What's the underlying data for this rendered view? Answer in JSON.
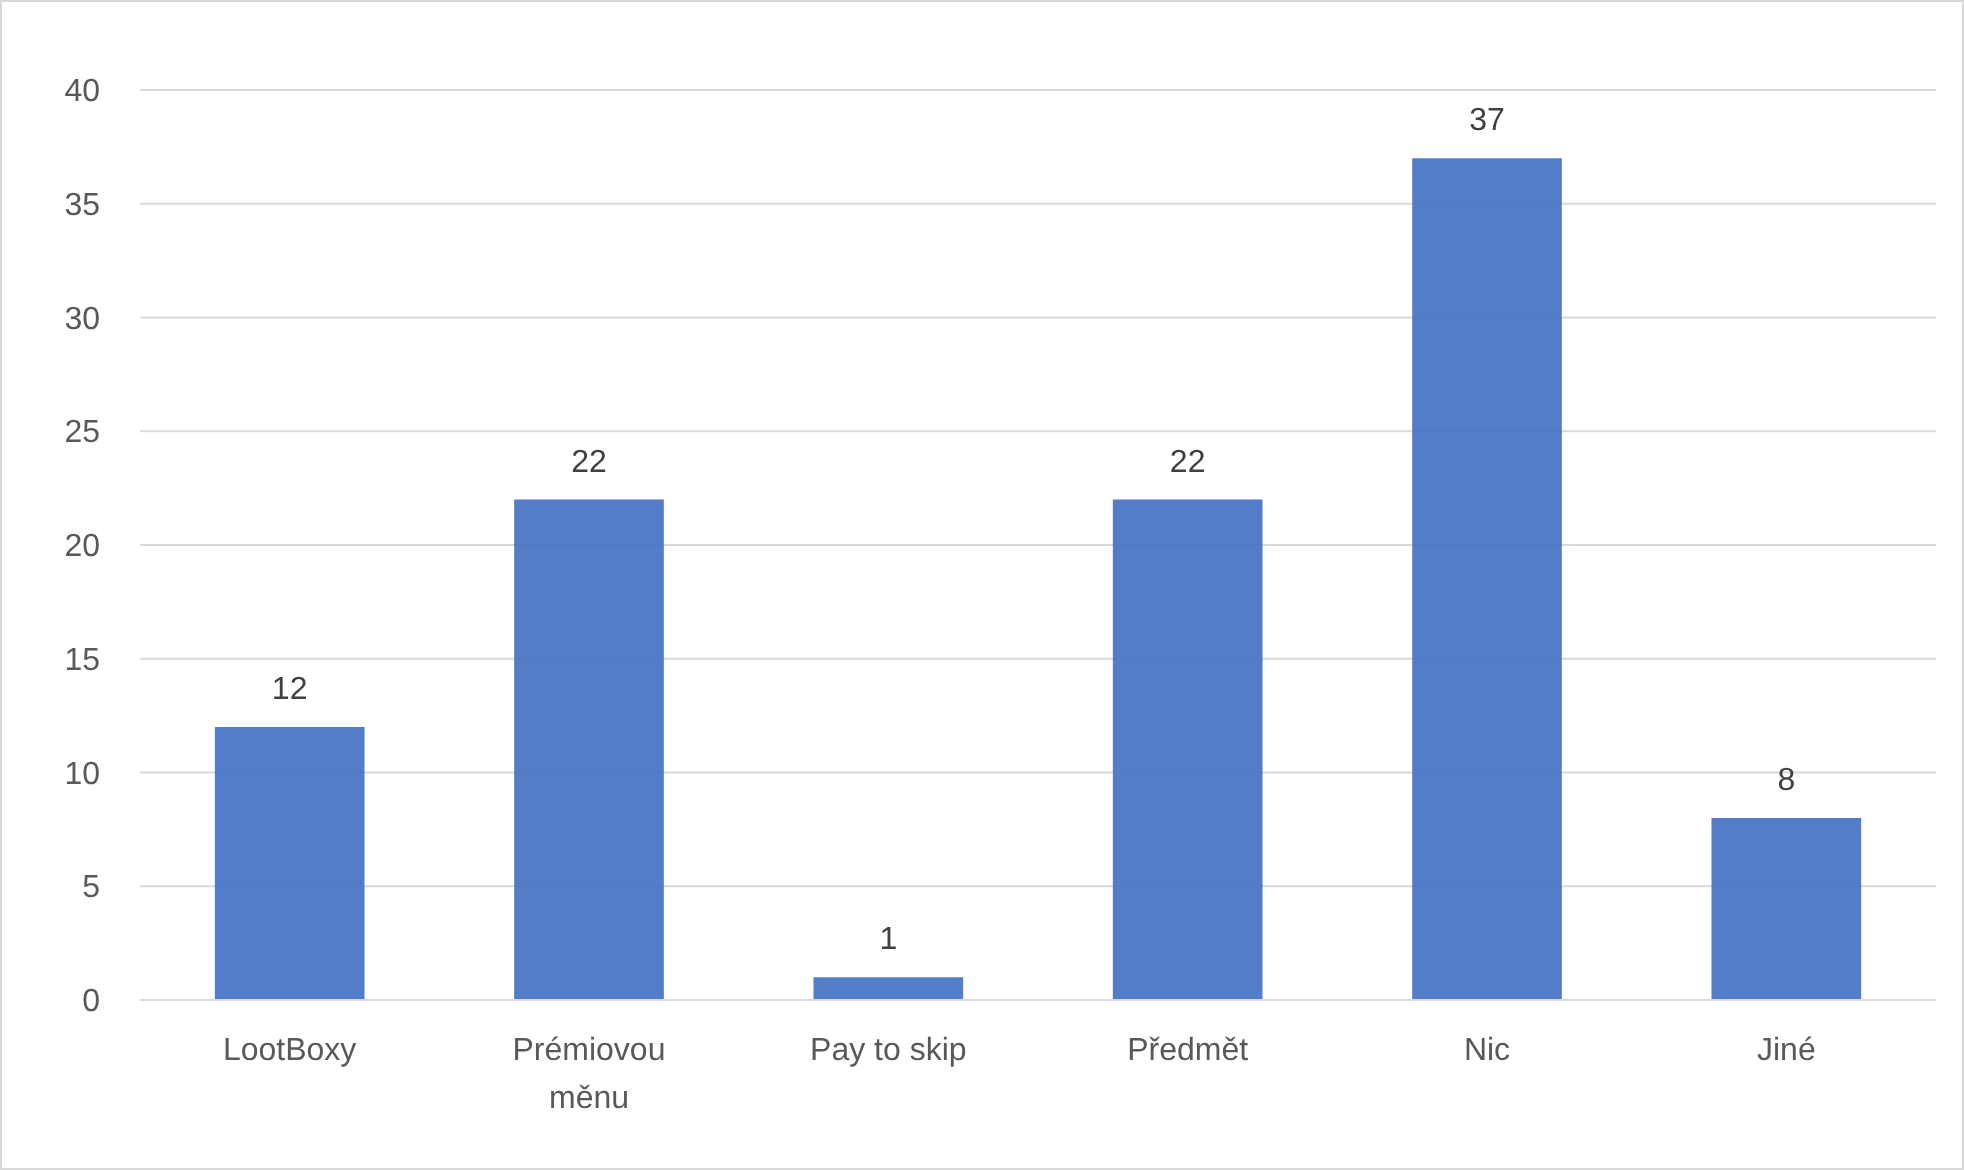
{
  "chart_data": {
    "type": "bar",
    "categories": [
      "LootBoxy",
      "Prémiovou měnu",
      "Pay to skip",
      "Předmět",
      "Nic",
      "Jiné"
    ],
    "values": [
      12,
      22,
      1,
      22,
      37,
      8
    ],
    "color": "#4472c4",
    "ylim": [
      0,
      40
    ],
    "yticks": [
      0,
      5,
      10,
      15,
      20,
      25,
      30,
      35,
      40
    ],
    "grid": "y",
    "data_labels": true
  }
}
